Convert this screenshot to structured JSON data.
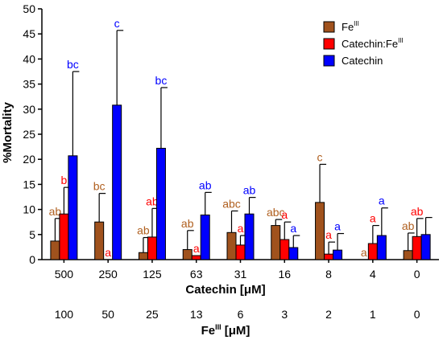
{
  "chart_data": {
    "type": "bar",
    "ylabel": "%Mortality",
    "ylim": [
      0,
      50
    ],
    "yticks": [
      "0",
      "5",
      "10",
      "15",
      "20",
      "25",
      "30",
      "35",
      "40",
      "45",
      "50"
    ],
    "categories": [
      "500",
      "250",
      "125",
      "63",
      "31",
      "16",
      "8",
      "4",
      "0"
    ],
    "xlabel": "Catechin [μM]",
    "categories2": [
      "100",
      "50",
      "25",
      "13",
      "6",
      "3",
      "2",
      "1",
      "0"
    ],
    "xlabel2_main": "Fe",
    "xlabel2_sup": "III",
    "xlabel2_rest": " [μM]",
    "legend_position": "top-right",
    "grid": false,
    "series": [
      {
        "name": "Fe",
        "name_sup": "III",
        "color": "#a0521d",
        "label_color": "#b06020",
        "values": [
          3.7,
          7.5,
          1.4,
          2.0,
          5.4,
          6.8,
          11.4,
          0.0,
          1.8
        ],
        "errors": [
          4.5,
          5.7,
          3.0,
          3.8,
          4.3,
          1.2,
          7.6,
          0.0,
          3.5
        ],
        "labels": [
          "ab",
          "bc",
          "ab",
          "ab",
          "abc",
          "abc",
          "c",
          "a",
          "ab"
        ]
      },
      {
        "name": "Catechin:Fe",
        "name_sup": "III",
        "color": "#ff0000",
        "label_color": "#ff0000",
        "values": [
          9.1,
          0.0,
          4.5,
          0.8,
          2.9,
          4.0,
          1.1,
          3.2,
          4.6
        ],
        "errors": [
          5.3,
          0.0,
          5.7,
          0.0,
          1.9,
          3.5,
          2.4,
          3.6,
          3.6
        ],
        "labels": [
          "b",
          "a",
          "ab",
          "a",
          "a",
          "a",
          "a",
          "a",
          "ab"
        ]
      },
      {
        "name": "Catechin",
        "name_sup": "",
        "color": "#0000ff",
        "label_color": "#0000ff",
        "values": [
          20.7,
          30.8,
          22.2,
          8.9,
          9.1,
          2.4,
          1.9,
          4.8,
          5.0
        ],
        "errors": [
          16.8,
          14.9,
          12.1,
          4.5,
          3.3,
          2.4,
          3.3,
          5.5,
          3.4
        ],
        "labels": [
          "bc",
          "c",
          "bc",
          "ab",
          "ab",
          "a",
          "a",
          "a",
          ""
        ]
      }
    ]
  }
}
